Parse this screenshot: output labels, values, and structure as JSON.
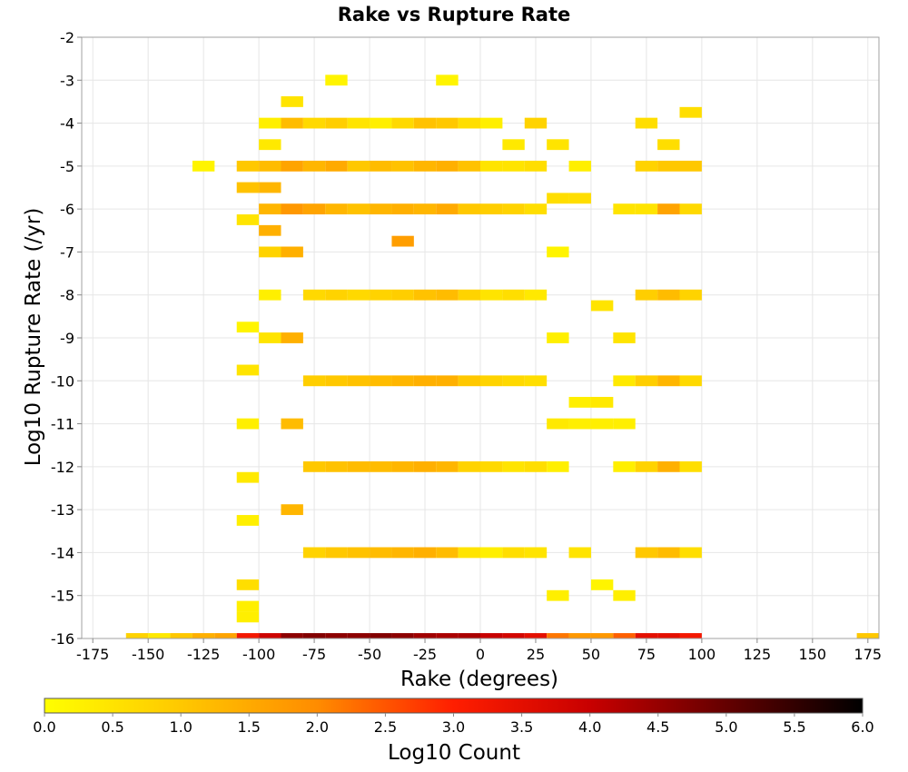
{
  "chart_data": {
    "type": "heatmap",
    "title": "Rake vs Rupture Rate",
    "xlabel": "Rake (degrees)",
    "ylabel": "Log10 Rupture Rate (/yr)",
    "xlim": [
      -180,
      180
    ],
    "ylim": [
      -16,
      -2
    ],
    "x_ticks": [
      -175,
      -150,
      -125,
      -100,
      -75,
      -50,
      -25,
      0,
      25,
      50,
      75,
      100,
      125,
      150,
      175
    ],
    "y_ticks": [
      -2,
      -3,
      -4,
      -5,
      -6,
      -7,
      -8,
      -9,
      -10,
      -11,
      -12,
      -13,
      -14,
      -15,
      -16
    ],
    "grid": true,
    "x_bin_width": 10,
    "y_bin_width": 0.25,
    "colorbar": {
      "label": "Log10 Count",
      "min": 0.0,
      "max": 6.0,
      "ticks": [
        "0.0",
        "0.5",
        "1.0",
        "1.5",
        "2.0",
        "2.5",
        "3.0",
        "3.5",
        "4.0",
        "4.5",
        "5.0",
        "5.5",
        "6.0"
      ],
      "colors": [
        "#ffff00",
        "#ffc800",
        "#ff8c00",
        "#ff1e00",
        "#c80000",
        "#640000",
        "#000000"
      ]
    },
    "cells": [
      [
        -155,
        -16,
        0.8
      ],
      [
        -145,
        -16,
        0.4
      ],
      [
        -135,
        -16,
        1.0
      ],
      [
        -125,
        -16,
        1.4
      ],
      [
        -115,
        -16,
        1.6
      ],
      [
        -105,
        -16,
        3.2
      ],
      [
        -95,
        -16,
        3.9
      ],
      [
        -85,
        -16,
        4.6
      ],
      [
        -75,
        -16,
        4.7
      ],
      [
        -65,
        -16,
        4.6
      ],
      [
        -55,
        -16,
        4.6
      ],
      [
        -45,
        -16,
        4.7
      ],
      [
        -35,
        -16,
        4.6
      ],
      [
        -25,
        -16,
        4.4
      ],
      [
        -15,
        -16,
        4.3
      ],
      [
        -5,
        -16,
        4.3
      ],
      [
        5,
        -16,
        4.0
      ],
      [
        15,
        -16,
        3.8
      ],
      [
        25,
        -16,
        3.5
      ],
      [
        35,
        -16,
        2.2
      ],
      [
        45,
        -16,
        1.8
      ],
      [
        55,
        -16,
        1.8
      ],
      [
        65,
        -16,
        2.4
      ],
      [
        75,
        -16,
        3.5
      ],
      [
        85,
        -16,
        3.5
      ],
      [
        95,
        -16,
        3.2
      ],
      [
        175,
        -16,
        1.0
      ],
      [
        -125,
        -5,
        0.2
      ],
      [
        -85,
        -3.5,
        0.5
      ],
      [
        -65,
        -3,
        0.2
      ],
      [
        -15,
        -3,
        0.2
      ],
      [
        -105,
        -15.5,
        0.3
      ],
      [
        -105,
        -15.25,
        0.3
      ],
      [
        -105,
        -14.75,
        0.6
      ],
      [
        -95,
        -9,
        0.5
      ],
      [
        -95,
        -8,
        0.3
      ],
      [
        -105,
        -9.75,
        0.5
      ],
      [
        -105,
        -8.75,
        0.2
      ],
      [
        -105,
        -11,
        0.3
      ],
      [
        -105,
        -12.25,
        0.4
      ],
      [
        -105,
        -13.25,
        0.3
      ],
      [
        -95,
        -4.5,
        0.4
      ],
      [
        -95,
        -4,
        0.3
      ],
      [
        -95,
        -5,
        1.2
      ],
      [
        -95,
        -5.5,
        1.3
      ],
      [
        -95,
        -6,
        1.3
      ],
      [
        -95,
        -6.5,
        1.4
      ],
      [
        -95,
        -7,
        0.8
      ],
      [
        -105,
        -5,
        1.0
      ],
      [
        -105,
        -5.5,
        1.1
      ],
      [
        -105,
        -6.25,
        0.5
      ],
      [
        -85,
        -4,
        1.2
      ],
      [
        -85,
        -5,
        1.6
      ],
      [
        -85,
        -6,
        1.8
      ],
      [
        -85,
        -7,
        1.4
      ],
      [
        -85,
        -9,
        1.4
      ],
      [
        -85,
        -11,
        1.2
      ],
      [
        -85,
        -13,
        1.3
      ],
      [
        -75,
        -4,
        0.7
      ],
      [
        -75,
        -5,
        1.3
      ],
      [
        -75,
        -6,
        1.6
      ],
      [
        -75,
        -8,
        0.7
      ],
      [
        -75,
        -10,
        0.9
      ],
      [
        -75,
        -12,
        1.0
      ],
      [
        -75,
        -14,
        0.8
      ],
      [
        -65,
        -4,
        0.9
      ],
      [
        -65,
        -5,
        1.5
      ],
      [
        -65,
        -6,
        1.3
      ],
      [
        -65,
        -8,
        0.8
      ],
      [
        -65,
        -10,
        1.0
      ],
      [
        -65,
        -12,
        1.1
      ],
      [
        -65,
        -14,
        1.0
      ],
      [
        -55,
        -4,
        0.5
      ],
      [
        -55,
        -5,
        1.0
      ],
      [
        -55,
        -6,
        1.1
      ],
      [
        -55,
        -8,
        0.7
      ],
      [
        -55,
        -10,
        1.1
      ],
      [
        -55,
        -12,
        1.2
      ],
      [
        -55,
        -14,
        1.1
      ],
      [
        -45,
        -4,
        0.3
      ],
      [
        -45,
        -5,
        1.2
      ],
      [
        -45,
        -6,
        1.3
      ],
      [
        -45,
        -8,
        0.8
      ],
      [
        -45,
        -10,
        1.2
      ],
      [
        -45,
        -12,
        1.2
      ],
      [
        -45,
        -14,
        1.2
      ],
      [
        -35,
        -4,
        0.7
      ],
      [
        -35,
        -5,
        1.1
      ],
      [
        -35,
        -6,
        1.4
      ],
      [
        -35,
        -6.75,
        1.7
      ],
      [
        -35,
        -8,
        0.9
      ],
      [
        -35,
        -10,
        1.3
      ],
      [
        -35,
        -12,
        1.3
      ],
      [
        -35,
        -14,
        1.3
      ],
      [
        -25,
        -4,
        1.1
      ],
      [
        -25,
        -5,
        1.3
      ],
      [
        -25,
        -6,
        1.3
      ],
      [
        -25,
        -8,
        1.1
      ],
      [
        -25,
        -10,
        1.4
      ],
      [
        -25,
        -12,
        1.4
      ],
      [
        -25,
        -14,
        1.4
      ],
      [
        -15,
        -4,
        1.0
      ],
      [
        -15,
        -5,
        1.4
      ],
      [
        -15,
        -6,
        1.5
      ],
      [
        -15,
        -8,
        1.2
      ],
      [
        -15,
        -10,
        1.4
      ],
      [
        -15,
        -12,
        1.3
      ],
      [
        -15,
        -14,
        1.2
      ],
      [
        -5,
        -4,
        0.6
      ],
      [
        -5,
        -5,
        1.1
      ],
      [
        -5,
        -6,
        1.0
      ],
      [
        -5,
        -8,
        0.8
      ],
      [
        -5,
        -10,
        1.0
      ],
      [
        -5,
        -12,
        0.8
      ],
      [
        -5,
        -14,
        0.5
      ],
      [
        5,
        -4,
        0.3
      ],
      [
        5,
        -5,
        0.5
      ],
      [
        5,
        -6,
        0.9
      ],
      [
        5,
        -8,
        0.5
      ],
      [
        5,
        -10,
        0.8
      ],
      [
        5,
        -12,
        0.7
      ],
      [
        5,
        -14,
        0.3
      ],
      [
        15,
        -4.5,
        0.4
      ],
      [
        15,
        -5,
        0.5
      ],
      [
        15,
        -6,
        0.8
      ],
      [
        15,
        -8,
        0.6
      ],
      [
        15,
        -10,
        0.7
      ],
      [
        15,
        -12,
        0.5
      ],
      [
        15,
        -14,
        0.6
      ],
      [
        25,
        -4,
        0.8
      ],
      [
        25,
        -5,
        0.6
      ],
      [
        25,
        -6,
        0.6
      ],
      [
        25,
        -8,
        0.4
      ],
      [
        25,
        -10,
        0.6
      ],
      [
        25,
        -12,
        0.6
      ],
      [
        25,
        -14,
        0.5
      ],
      [
        35,
        -4.5,
        0.5
      ],
      [
        35,
        -5.75,
        0.6
      ],
      [
        35,
        -7,
        0.2
      ],
      [
        35,
        -9,
        0.3
      ],
      [
        35,
        -11,
        0.4
      ],
      [
        35,
        -12,
        0.3
      ],
      [
        35,
        -15,
        0.3
      ],
      [
        45,
        -5,
        0.3
      ],
      [
        45,
        -5.75,
        0.6
      ],
      [
        45,
        -10.5,
        0.3
      ],
      [
        45,
        -11,
        0.3
      ],
      [
        45,
        -14,
        0.5
      ],
      [
        55,
        -8.25,
        0.5
      ],
      [
        55,
        -10.5,
        0.4
      ],
      [
        55,
        -11,
        0.3
      ],
      [
        55,
        -14.75,
        0.2
      ],
      [
        65,
        -6,
        0.5
      ],
      [
        65,
        -9,
        0.5
      ],
      [
        65,
        -10,
        0.4
      ],
      [
        65,
        -11,
        0.3
      ],
      [
        65,
        -12,
        0.3
      ],
      [
        65,
        -15,
        0.3
      ],
      [
        75,
        -4,
        0.6
      ],
      [
        75,
        -5,
        0.8
      ],
      [
        75,
        -6,
        0.5
      ],
      [
        75,
        -8,
        0.9
      ],
      [
        75,
        -10,
        0.9
      ],
      [
        75,
        -12,
        0.8
      ],
      [
        75,
        -14,
        1.0
      ],
      [
        85,
        -4.5,
        0.6
      ],
      [
        85,
        -5,
        1.0
      ],
      [
        85,
        -6,
        1.6
      ],
      [
        85,
        -8,
        1.2
      ],
      [
        85,
        -10,
        1.3
      ],
      [
        85,
        -12,
        1.4
      ],
      [
        85,
        -14,
        1.2
      ],
      [
        95,
        -3.75,
        0.6
      ],
      [
        95,
        -5,
        1.0
      ],
      [
        95,
        -6,
        0.7
      ],
      [
        95,
        -8,
        0.8
      ],
      [
        95,
        -10,
        0.7
      ],
      [
        95,
        -12,
        0.6
      ],
      [
        95,
        -14,
        0.6
      ]
    ]
  }
}
